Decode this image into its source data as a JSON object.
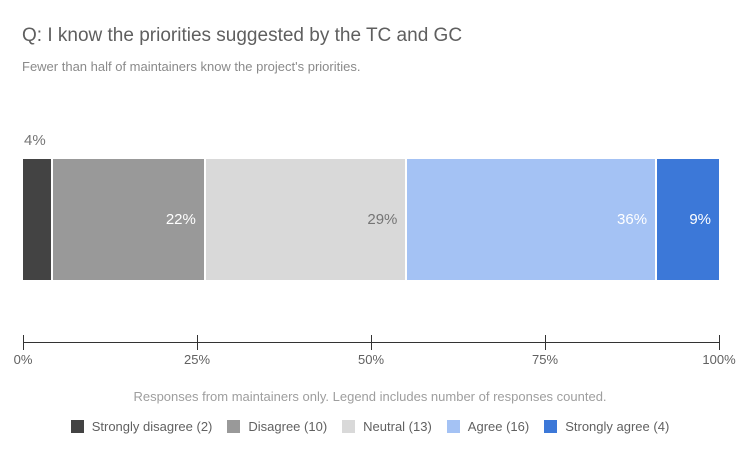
{
  "chart_data": {
    "type": "bar",
    "variant": "stacked-horizontal-100percent",
    "title": "Q: I know the priorities suggested by the TC and GC",
    "subtitle": "Fewer than half of maintainers know the project's priorities.",
    "note": "Responses from maintainers only. Legend includes number of responses counted.",
    "categories": [
      "Strongly disagree",
      "Disagree",
      "Neutral",
      "Agree",
      "Strongly agree"
    ],
    "series": [
      {
        "name": "Strongly disagree",
        "count": 2,
        "percent": 4,
        "label": "4%",
        "legend_label": "Strongly disagree (2)",
        "color": "#434343",
        "label_color": "#757575",
        "label_position": "above"
      },
      {
        "name": "Disagree",
        "count": 10,
        "percent": 22,
        "label": "22%",
        "legend_label": "Disagree (10)",
        "color": "#999999",
        "label_color": "#ffffff",
        "label_position": "inside"
      },
      {
        "name": "Neutral",
        "count": 13,
        "percent": 29,
        "label": "29%",
        "legend_label": "Neutral (13)",
        "color": "#d9d9d9",
        "label_color": "#757575",
        "label_position": "inside"
      },
      {
        "name": "Agree",
        "count": 16,
        "percent": 36,
        "label": "36%",
        "legend_label": "Agree (16)",
        "color": "#a4c2f4",
        "label_color": "#ffffff",
        "label_position": "inside"
      },
      {
        "name": "Strongly agree",
        "count": 4,
        "percent": 9,
        "label": "9%",
        "legend_label": "Strongly agree (4)",
        "color": "#3c78d8",
        "label_color": "#ffffff",
        "label_position": "inside"
      }
    ],
    "x_axis": {
      "ticks": [
        "0%",
        "25%",
        "50%",
        "75%",
        "100%"
      ],
      "range": [
        0,
        100
      ],
      "line_color": "#333333"
    },
    "legend_position": "bottom",
    "grid": false
  }
}
